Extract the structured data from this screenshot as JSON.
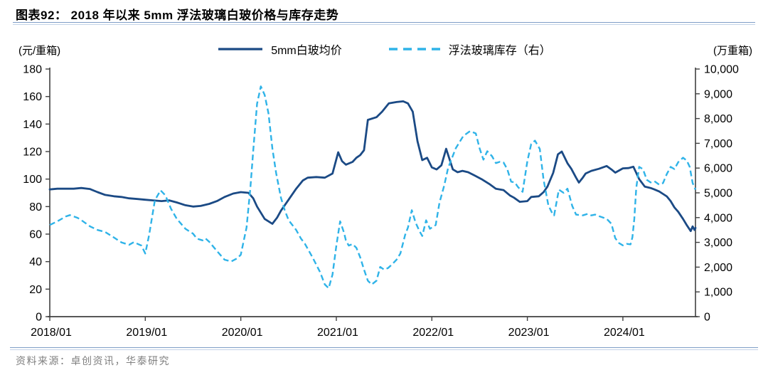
{
  "header": {
    "title": "图表92：  2018 年以来 5mm 浮法玻璃白玻价格与库存走势"
  },
  "legend": [
    {
      "label": "5mm白玻均价",
      "style": "solid",
      "color": "#1b4a85"
    },
    {
      "label": "浮法玻璃库存（右）",
      "style": "dashed",
      "color": "#2fb3e8"
    }
  ],
  "footer": {
    "source": "资料来源：卓创资讯，华泰研究"
  },
  "colors": {
    "price": "#1b4a85",
    "inventory": "#2fb3e8",
    "axis": "#404040",
    "rule": "#7f9ec7",
    "source_text": "#7f7f7f"
  },
  "chart_data": {
    "type": "line",
    "title": "2018 年以来 5mm 浮法玻璃白玻价格与库存走势",
    "left_axis": {
      "unit": "(元/重箱)",
      "min": 0,
      "max": 180,
      "step": 20
    },
    "right_axis": {
      "unit": "(万重箱)",
      "min": 0,
      "max": 10000,
      "step": 1000
    },
    "x_axis": {
      "range": [
        2018.0,
        2024.76
      ],
      "tick_positions": [
        2018,
        2019,
        2020,
        2021,
        2022,
        2023,
        2024
      ],
      "tick_labels": [
        "2018/01",
        "2019/01",
        "2020/01",
        "2021/01",
        "2022/01",
        "2023/01",
        "2024/01"
      ]
    },
    "grid": false,
    "legend_position": "top-center",
    "series": [
      {
        "name": "5mm白玻均价",
        "axis": "left",
        "dash": false,
        "color": "#1b4a85",
        "points": [
          [
            2018.0,
            92.5
          ],
          [
            2018.08,
            93
          ],
          [
            2018.17,
            93
          ],
          [
            2018.25,
            93
          ],
          [
            2018.33,
            93.5
          ],
          [
            2018.42,
            92.8
          ],
          [
            2018.5,
            90.5
          ],
          [
            2018.58,
            88.5
          ],
          [
            2018.67,
            87.5
          ],
          [
            2018.75,
            87
          ],
          [
            2018.83,
            86
          ],
          [
            2018.92,
            85.5
          ],
          [
            2019.0,
            85
          ],
          [
            2019.08,
            84.5
          ],
          [
            2019.17,
            84
          ],
          [
            2019.25,
            84.5
          ],
          [
            2019.33,
            83
          ],
          [
            2019.42,
            81
          ],
          [
            2019.5,
            80
          ],
          [
            2019.58,
            80.5
          ],
          [
            2019.67,
            82
          ],
          [
            2019.75,
            84
          ],
          [
            2019.83,
            87
          ],
          [
            2019.92,
            89.5
          ],
          [
            2020.0,
            90.5
          ],
          [
            2020.08,
            90
          ],
          [
            2020.13,
            86
          ],
          [
            2020.17,
            80
          ],
          [
            2020.25,
            71
          ],
          [
            2020.33,
            67.5
          ],
          [
            2020.38,
            72
          ],
          [
            2020.42,
            77
          ],
          [
            2020.5,
            85
          ],
          [
            2020.58,
            93
          ],
          [
            2020.65,
            99
          ],
          [
            2020.7,
            101
          ],
          [
            2020.79,
            101.5
          ],
          [
            2020.88,
            101
          ],
          [
            2020.96,
            104
          ],
          [
            2021.02,
            119.5
          ],
          [
            2021.06,
            113
          ],
          [
            2021.1,
            110.5
          ],
          [
            2021.17,
            112.5
          ],
          [
            2021.21,
            115.5
          ],
          [
            2021.25,
            117.4
          ],
          [
            2021.29,
            121
          ],
          [
            2021.33,
            143
          ],
          [
            2021.42,
            145
          ],
          [
            2021.48,
            149
          ],
          [
            2021.55,
            155
          ],
          [
            2021.63,
            156
          ],
          [
            2021.7,
            156.5
          ],
          [
            2021.75,
            155
          ],
          [
            2021.8,
            149
          ],
          [
            2021.85,
            127.5
          ],
          [
            2021.9,
            113.8
          ],
          [
            2021.95,
            115.5
          ],
          [
            2022.0,
            108.5
          ],
          [
            2022.05,
            107
          ],
          [
            2022.1,
            110
          ],
          [
            2022.15,
            122
          ],
          [
            2022.22,
            107
          ],
          [
            2022.27,
            105
          ],
          [
            2022.32,
            106
          ],
          [
            2022.38,
            105
          ],
          [
            2022.45,
            102.5
          ],
          [
            2022.52,
            100
          ],
          [
            2022.6,
            96.5
          ],
          [
            2022.67,
            93
          ],
          [
            2022.75,
            92
          ],
          [
            2022.82,
            88
          ],
          [
            2022.86,
            86.5
          ],
          [
            2022.92,
            83.5
          ],
          [
            2023.0,
            84
          ],
          [
            2023.04,
            87
          ],
          [
            2023.12,
            87.5
          ],
          [
            2023.17,
            90.5
          ],
          [
            2023.21,
            94.5
          ],
          [
            2023.27,
            104.5
          ],
          [
            2023.32,
            118
          ],
          [
            2023.36,
            120
          ],
          [
            2023.42,
            111.5
          ],
          [
            2023.46,
            107.5
          ],
          [
            2023.51,
            101
          ],
          [
            2023.54,
            97.5
          ],
          [
            2023.58,
            101
          ],
          [
            2023.61,
            104
          ],
          [
            2023.67,
            106
          ],
          [
            2023.75,
            107.5
          ],
          [
            2023.83,
            109.5
          ],
          [
            2023.88,
            107
          ],
          [
            2023.92,
            104.7
          ],
          [
            2024.0,
            107.8
          ],
          [
            2024.06,
            108
          ],
          [
            2024.11,
            109
          ],
          [
            2024.17,
            100
          ],
          [
            2024.23,
            94.5
          ],
          [
            2024.29,
            93.5
          ],
          [
            2024.33,
            92.5
          ],
          [
            2024.38,
            91
          ],
          [
            2024.42,
            89.2
          ],
          [
            2024.46,
            87.4
          ],
          [
            2024.5,
            84
          ],
          [
            2024.54,
            79.4
          ],
          [
            2024.58,
            76.2
          ],
          [
            2024.63,
            71
          ],
          [
            2024.67,
            66.4
          ],
          [
            2024.71,
            62.2
          ],
          [
            2024.73,
            65.6
          ],
          [
            2024.75,
            63
          ],
          [
            2024.76,
            64.5
          ]
        ]
      },
      {
        "name": "浮法玻璃库存（右）",
        "axis": "right",
        "dash": true,
        "color": "#2fb3e8",
        "points": [
          [
            2018.0,
            3700
          ],
          [
            2018.08,
            3850
          ],
          [
            2018.17,
            4050
          ],
          [
            2018.21,
            4100
          ],
          [
            2018.29,
            3990
          ],
          [
            2018.33,
            3900
          ],
          [
            2018.42,
            3650
          ],
          [
            2018.5,
            3500
          ],
          [
            2018.58,
            3420
          ],
          [
            2018.67,
            3200
          ],
          [
            2018.75,
            3000
          ],
          [
            2018.83,
            2900
          ],
          [
            2018.88,
            3010
          ],
          [
            2018.96,
            2870
          ],
          [
            2019.0,
            2550
          ],
          [
            2019.04,
            3300
          ],
          [
            2019.1,
            4700
          ],
          [
            2019.16,
            5100
          ],
          [
            2019.21,
            4900
          ],
          [
            2019.27,
            4350
          ],
          [
            2019.33,
            3950
          ],
          [
            2019.42,
            3550
          ],
          [
            2019.5,
            3350
          ],
          [
            2019.54,
            3150
          ],
          [
            2019.6,
            3080
          ],
          [
            2019.63,
            3160
          ],
          [
            2019.67,
            3020
          ],
          [
            2019.75,
            2650
          ],
          [
            2019.83,
            2300
          ],
          [
            2019.9,
            2230
          ],
          [
            2019.96,
            2350
          ],
          [
            2020.0,
            2500
          ],
          [
            2020.06,
            3600
          ],
          [
            2020.1,
            5200
          ],
          [
            2020.13,
            6700
          ],
          [
            2020.17,
            8600
          ],
          [
            2020.21,
            9300
          ],
          [
            2020.25,
            8950
          ],
          [
            2020.29,
            8200
          ],
          [
            2020.33,
            6800
          ],
          [
            2020.37,
            5800
          ],
          [
            2020.42,
            4800
          ],
          [
            2020.46,
            4300
          ],
          [
            2020.5,
            3900
          ],
          [
            2020.58,
            3500
          ],
          [
            2020.63,
            3150
          ],
          [
            2020.67,
            2950
          ],
          [
            2020.75,
            2400
          ],
          [
            2020.83,
            1800
          ],
          [
            2020.88,
            1300
          ],
          [
            2020.92,
            1150
          ],
          [
            2020.96,
            1700
          ],
          [
            2021.0,
            2870
          ],
          [
            2021.04,
            3850
          ],
          [
            2021.08,
            3400
          ],
          [
            2021.1,
            3080
          ],
          [
            2021.13,
            2870
          ],
          [
            2021.17,
            2930
          ],
          [
            2021.21,
            2780
          ],
          [
            2021.25,
            2400
          ],
          [
            2021.29,
            1900
          ],
          [
            2021.33,
            1450
          ],
          [
            2021.37,
            1300
          ],
          [
            2021.42,
            1450
          ],
          [
            2021.46,
            2010
          ],
          [
            2021.5,
            1900
          ],
          [
            2021.54,
            1960
          ],
          [
            2021.58,
            2100
          ],
          [
            2021.63,
            2300
          ],
          [
            2021.67,
            2550
          ],
          [
            2021.72,
            3300
          ],
          [
            2021.75,
            3600
          ],
          [
            2021.79,
            4300
          ],
          [
            2021.83,
            3800
          ],
          [
            2021.87,
            3460
          ],
          [
            2021.9,
            3260
          ],
          [
            2021.94,
            3890
          ],
          [
            2021.98,
            3550
          ],
          [
            2022.04,
            3700
          ],
          [
            2022.08,
            4600
          ],
          [
            2022.13,
            5300
          ],
          [
            2022.17,
            6000
          ],
          [
            2022.25,
            6800
          ],
          [
            2022.33,
            7300
          ],
          [
            2022.4,
            7490
          ],
          [
            2022.46,
            7400
          ],
          [
            2022.5,
            6800
          ],
          [
            2022.54,
            6340
          ],
          [
            2022.58,
            6680
          ],
          [
            2022.63,
            6480
          ],
          [
            2022.67,
            6200
          ],
          [
            2022.71,
            6250
          ],
          [
            2022.75,
            6230
          ],
          [
            2022.79,
            5950
          ],
          [
            2022.83,
            5450
          ],
          [
            2022.87,
            5420
          ],
          [
            2022.9,
            5240
          ],
          [
            2022.95,
            5040
          ],
          [
            2023.0,
            6280
          ],
          [
            2023.04,
            6970
          ],
          [
            2023.08,
            7110
          ],
          [
            2023.13,
            6770
          ],
          [
            2023.17,
            5530
          ],
          [
            2023.22,
            4500
          ],
          [
            2023.26,
            4180
          ],
          [
            2023.28,
            4090
          ],
          [
            2023.33,
            5130
          ],
          [
            2023.38,
            5000
          ],
          [
            2023.42,
            5170
          ],
          [
            2023.47,
            4470
          ],
          [
            2023.51,
            4120
          ],
          [
            2023.58,
            4090
          ],
          [
            2023.63,
            4150
          ],
          [
            2023.67,
            4090
          ],
          [
            2023.71,
            4120
          ],
          [
            2023.75,
            4060
          ],
          [
            2023.83,
            3950
          ],
          [
            2023.88,
            3750
          ],
          [
            2023.92,
            3170
          ],
          [
            2023.96,
            2970
          ],
          [
            2024.0,
            2880
          ],
          [
            2024.04,
            2940
          ],
          [
            2024.08,
            2920
          ],
          [
            2024.1,
            3200
          ],
          [
            2024.12,
            3950
          ],
          [
            2024.14,
            5190
          ],
          [
            2024.17,
            6050
          ],
          [
            2024.21,
            5960
          ],
          [
            2024.25,
            5530
          ],
          [
            2024.29,
            5420
          ],
          [
            2024.33,
            5470
          ],
          [
            2024.38,
            5330
          ],
          [
            2024.42,
            5390
          ],
          [
            2024.46,
            5760
          ],
          [
            2024.5,
            6050
          ],
          [
            2024.54,
            5960
          ],
          [
            2024.58,
            6240
          ],
          [
            2024.63,
            6420
          ],
          [
            2024.67,
            6300
          ],
          [
            2024.7,
            6050
          ],
          [
            2024.73,
            5400
          ],
          [
            2024.76,
            5130
          ]
        ]
      }
    ]
  }
}
